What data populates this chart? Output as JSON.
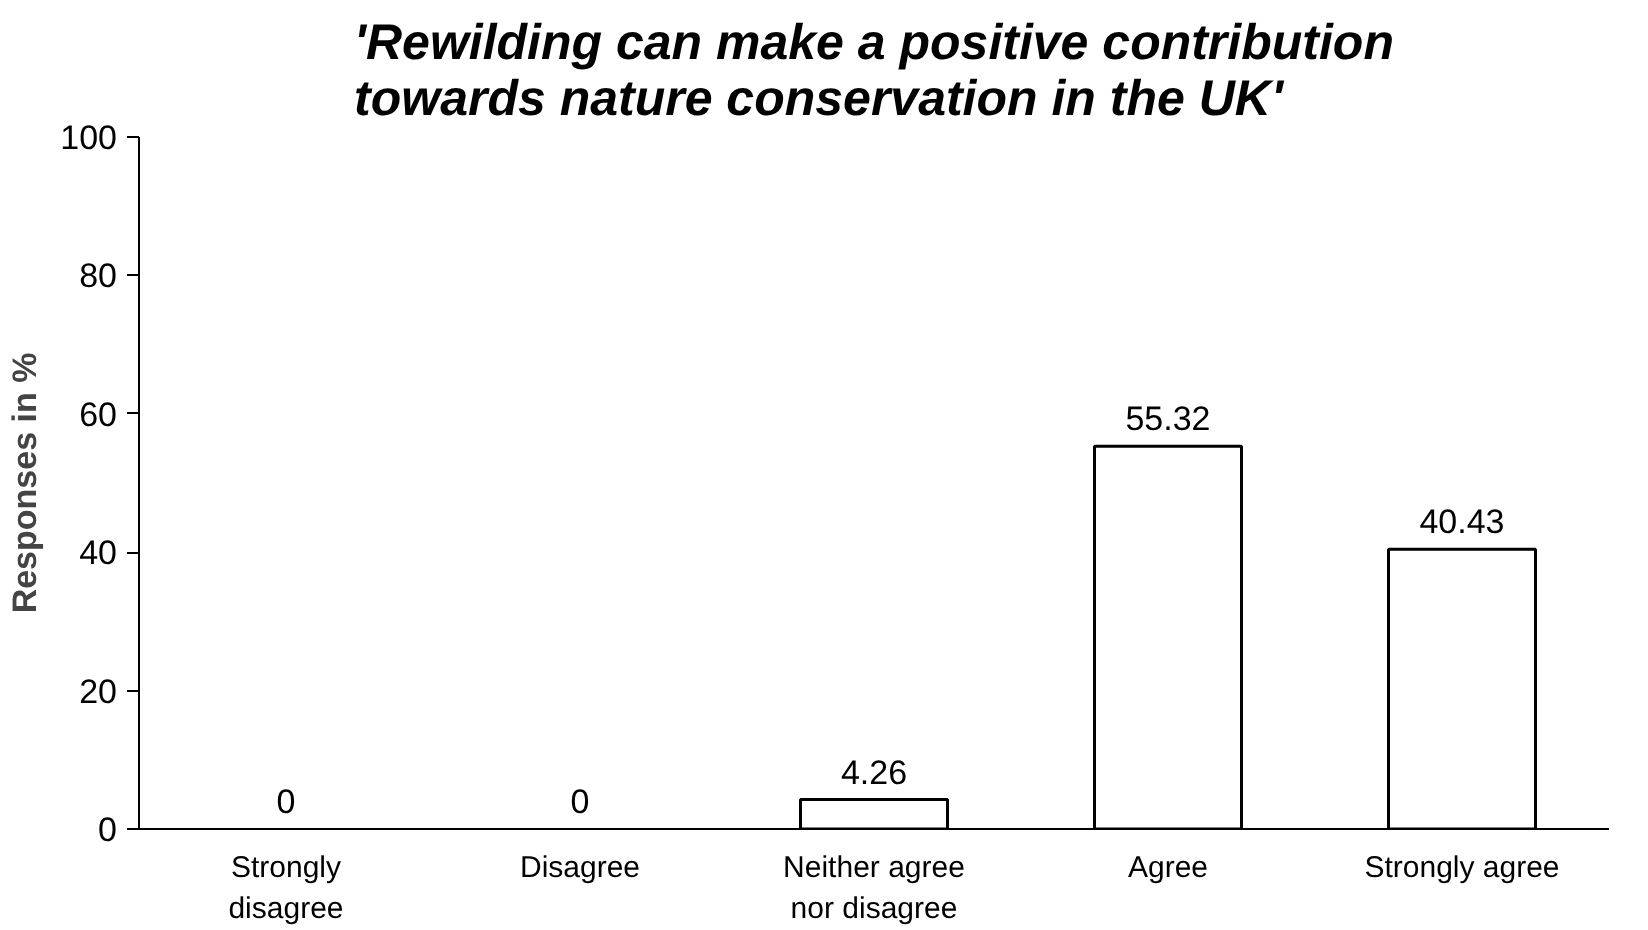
{
  "chart_data": {
    "type": "bar",
    "title": "'Rewilding can make a positive contribution\ntowards nature conservation in the UK'",
    "ylabel": "Responses in %",
    "categories": [
      "Strongly\ndisagree",
      "Disagree",
      "Neither agree\nnor disagree",
      "Agree",
      "Strongly agree"
    ],
    "values": [
      0,
      0,
      4.26,
      55.32,
      40.43
    ],
    "color": "#ffffff",
    "ylim": [
      0,
      100
    ],
    "yticks": [
      0,
      20,
      40,
      60,
      80,
      100
    ],
    "grid": false,
    "data_labels": true
  }
}
